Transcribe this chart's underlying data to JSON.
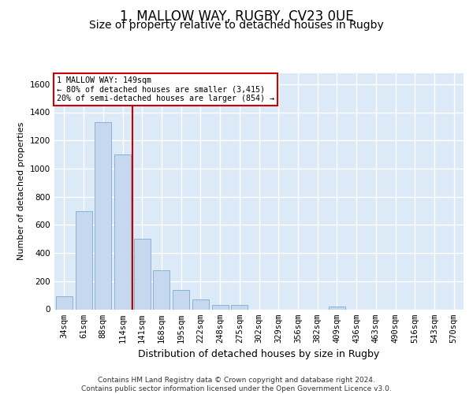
{
  "title1": "1, MALLOW WAY, RUGBY, CV23 0UE",
  "title2": "Size of property relative to detached houses in Rugby",
  "xlabel": "Distribution of detached houses by size in Rugby",
  "ylabel": "Number of detached properties",
  "categories": [
    "34sqm",
    "61sqm",
    "88sqm",
    "114sqm",
    "141sqm",
    "168sqm",
    "195sqm",
    "222sqm",
    "248sqm",
    "275sqm",
    "302sqm",
    "329sqm",
    "356sqm",
    "382sqm",
    "409sqm",
    "436sqm",
    "463sqm",
    "490sqm",
    "516sqm",
    "543sqm",
    "570sqm"
  ],
  "values": [
    95,
    700,
    1330,
    1100,
    500,
    275,
    135,
    70,
    33,
    33,
    0,
    0,
    0,
    0,
    17,
    0,
    0,
    0,
    0,
    0,
    0
  ],
  "bar_color": "#c5d8ee",
  "bar_edge_color": "#7aabcc",
  "vline_color": "#cc0000",
  "annotation_text": "1 MALLOW WAY: 149sqm\n← 80% of detached houses are smaller (3,415)\n20% of semi-detached houses are larger (854) →",
  "annotation_box_color": "#ffffff",
  "annotation_box_edge": "#cc0000",
  "ylim": [
    0,
    1680
  ],
  "yticks": [
    0,
    200,
    400,
    600,
    800,
    1000,
    1200,
    1400,
    1600
  ],
  "bg_color": "#dce9f7",
  "grid_color": "#ffffff",
  "footer": "Contains HM Land Registry data © Crown copyright and database right 2024.\nContains public sector information licensed under the Open Government Licence v3.0.",
  "title1_fontsize": 12,
  "title2_fontsize": 10,
  "xlabel_fontsize": 9,
  "ylabel_fontsize": 8,
  "tick_fontsize": 7.5,
  "footer_fontsize": 6.5
}
